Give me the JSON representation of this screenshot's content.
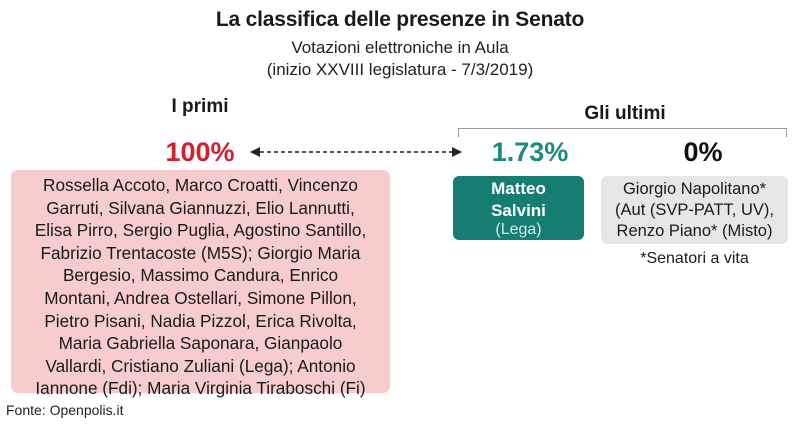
{
  "title": "La classifica delle presenze in Senato",
  "subtitle_line1": "Votazioni elettroniche in Aula",
  "subtitle_line2": "(inizio XXVIII legislatura - 7/3/2019)",
  "first": {
    "heading": "I primi",
    "percent": "100%",
    "names_lines": [
      "Rossella Accoto, Marco Croatti, Vincenzo",
      "Garruti, Silvana Giannuzzi, Elio Lannutti,",
      "Elisa Pirro, Sergio Puglia, Agostino Santillo,",
      "Fabrizio Trentacoste (M5S); Giorgio Maria",
      "Bergesio, Massimo Candura, Enrico",
      "Montani, Andrea Ostellari, Simone Pillon,",
      "Pietro Pisani, Nadia Pizzol, Erica Rivolta,",
      "Maria Gabriella Saponara, Gianpaolo",
      "Vallardi, Cristiano Zuliani (Lega); Antonio",
      "Iannone (Fdi); Maria Virginia Tiraboschi (Fi)"
    ]
  },
  "last": {
    "heading": "Gli ultimi",
    "salvini": {
      "percent": "1.73%",
      "name_line1": "Matteo",
      "name_line2": "Salvini",
      "party": "(Lega)"
    },
    "zero": {
      "percent": "0%",
      "lines": [
        "Giorgio Napolitano*",
        "(Aut (SVP-PATT, UV),",
        "Renzo Piano* (Misto)"
      ],
      "footnote": "*Senatori a vita"
    }
  },
  "source": "Fonte: Openpolis.it",
  "colors": {
    "red": "#d1202f",
    "teal": "#1b8a7f",
    "teal_box": "#167d73",
    "pink_box": "#f6cccc",
    "grey_box": "#e6e6e6"
  }
}
